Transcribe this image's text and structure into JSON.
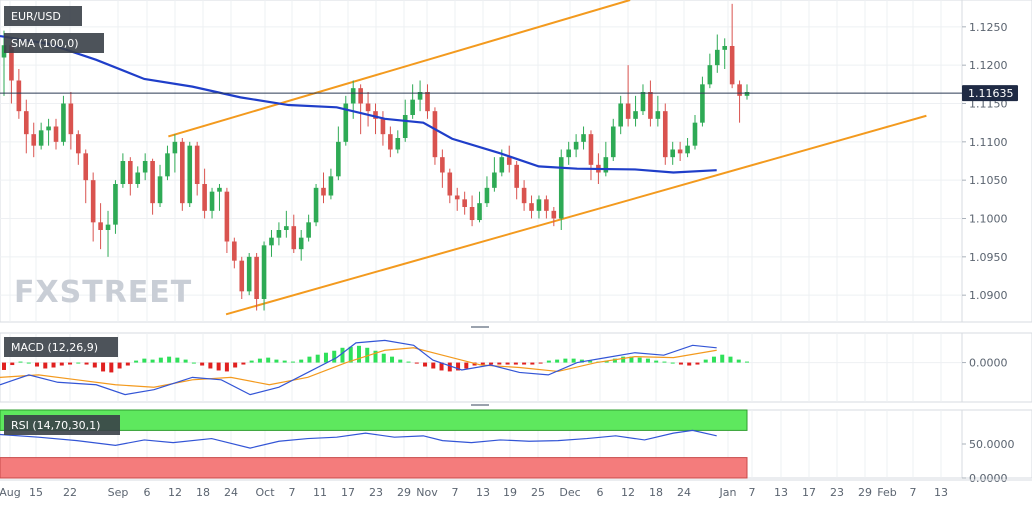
{
  "chart_data": [
    {
      "type": "candlestick",
      "symbol": "EUR/USD",
      "watermark": "FXSTREET",
      "indicator": "SMA (100,0)",
      "last_price": "1.11635",
      "ylim": [
        1.0865,
        1.1285
      ],
      "y_ticks": [
        "1.1250",
        "1.1200",
        "1.1150",
        "1.1100",
        "1.1050",
        "1.1000",
        "1.0950",
        "1.0900"
      ],
      "y_tick_values": [
        1.125,
        1.12,
        1.115,
        1.11,
        1.105,
        1.1,
        1.095,
        1.09
      ],
      "x_ticks": [
        "Aug",
        "15",
        "22",
        "Sep",
        "6",
        "12",
        "18",
        "24",
        "Oct",
        "7",
        "11",
        "17",
        "23",
        "29",
        "Nov",
        "7",
        "13",
        "19",
        "25",
        "Dec",
        "6",
        "12",
        "18",
        "24",
        "Jan",
        "7",
        "13",
        "17",
        "23",
        "29",
        "Feb",
        "7",
        "13"
      ],
      "colors": {
        "up": "#2eaa55",
        "down": "#d9534f",
        "sma": "#1f3ec9",
        "channel": "#f39a1e",
        "price_line": "#2b3a55",
        "tag_bg": "#3a4048",
        "last_bg": "#1f2a44"
      },
      "channel_upper": [
        [
          0.175,
          1.1107
        ],
        [
          0.655,
          1.1285
        ]
      ],
      "channel_lower": [
        [
          0.235,
          1.0875
        ],
        [
          0.963,
          1.1134
        ]
      ],
      "sma_points": [
        [
          0.0,
          1.1238
        ],
        [
          0.05,
          1.1228
        ],
        [
          0.1,
          1.1207
        ],
        [
          0.15,
          1.1182
        ],
        [
          0.2,
          1.1172
        ],
        [
          0.25,
          1.1158
        ],
        [
          0.3,
          1.1148
        ],
        [
          0.35,
          1.1145
        ],
        [
          0.4,
          1.113
        ],
        [
          0.44,
          1.1125
        ],
        [
          0.47,
          1.1104
        ],
        [
          0.52,
          1.1085
        ],
        [
          0.56,
          1.1068
        ],
        [
          0.6,
          1.1065
        ],
        [
          0.66,
          1.1064
        ],
        [
          0.7,
          1.106
        ],
        [
          0.745,
          1.1063
        ]
      ],
      "candles": [
        [
          1.121,
          1.1226,
          1.1245,
          1.116
        ],
        [
          1.1226,
          1.118,
          1.1235,
          1.115
        ],
        [
          1.118,
          1.114,
          1.1195,
          1.113
        ],
        [
          1.114,
          1.111,
          1.1155,
          1.1085
        ],
        [
          1.111,
          1.1095,
          1.1125,
          1.108
        ],
        [
          1.1095,
          1.1115,
          1.1125,
          1.109
        ],
        [
          1.1115,
          1.112,
          1.113,
          1.1095
        ],
        [
          1.112,
          1.11,
          1.113,
          1.109
        ],
        [
          1.11,
          1.115,
          1.116,
          1.1095
        ],
        [
          1.115,
          1.111,
          1.1165,
          1.109
        ],
        [
          1.111,
          1.1085,
          1.1115,
          1.107
        ],
        [
          1.1085,
          1.105,
          1.109,
          1.102
        ],
        [
          1.105,
          1.0995,
          1.106,
          1.097
        ],
        [
          1.0995,
          1.0985,
          1.102,
          1.096
        ],
        [
          1.0985,
          1.0992,
          1.101,
          1.095
        ],
        [
          1.0992,
          1.1045,
          1.105,
          1.098
        ],
        [
          1.1045,
          1.1075,
          1.1085,
          1.104
        ],
        [
          1.1075,
          1.1045,
          1.108,
          1.103
        ],
        [
          1.1045,
          1.106,
          1.1068,
          1.104
        ],
        [
          1.106,
          1.1075,
          1.1085,
          1.105
        ],
        [
          1.1075,
          1.102,
          1.1078,
          1.1005
        ],
        [
          1.102,
          1.1055,
          1.107,
          1.1015
        ],
        [
          1.1055,
          1.1085,
          1.1095,
          1.105
        ],
        [
          1.1085,
          1.11,
          1.111,
          1.106
        ],
        [
          1.11,
          1.102,
          1.1105,
          1.101
        ],
        [
          1.102,
          1.1095,
          1.11,
          1.1015
        ],
        [
          1.1095,
          1.1045,
          1.11,
          1.103
        ],
        [
          1.1045,
          1.101,
          1.1065,
          1.1
        ],
        [
          1.101,
          1.1035,
          1.104,
          1.1
        ],
        [
          1.1035,
          1.104,
          1.1045,
          1.101
        ],
        [
          1.1035,
          1.097,
          1.104,
          1.0955
        ],
        [
          1.097,
          1.0945,
          1.0975,
          1.0935
        ],
        [
          1.0945,
          1.0905,
          1.095,
          1.0895
        ],
        [
          1.0905,
          1.095,
          1.0955,
          1.09
        ],
        [
          1.095,
          1.0895,
          1.0955,
          1.088
        ],
        [
          1.0895,
          1.0965,
          1.097,
          1.088
        ],
        [
          1.0965,
          1.0975,
          1.0985,
          1.095
        ],
        [
          1.0975,
          1.0985,
          1.0995,
          1.0965
        ],
        [
          1.0985,
          1.099,
          1.101,
          1.0975
        ],
        [
          1.099,
          1.096,
          1.1005,
          1.0955
        ],
        [
          1.096,
          1.0975,
          1.0985,
          1.0945
        ],
        [
          1.0975,
          1.0995,
          1.1005,
          1.097
        ],
        [
          1.0995,
          1.104,
          1.1045,
          1.099
        ],
        [
          1.104,
          1.103,
          1.106,
          1.102
        ],
        [
          1.103,
          1.1055,
          1.1065,
          1.1025
        ],
        [
          1.1055,
          1.11,
          1.112,
          1.105
        ],
        [
          1.11,
          1.115,
          1.116,
          1.1095
        ],
        [
          1.115,
          1.117,
          1.118,
          1.113
        ],
        [
          1.117,
          1.115,
          1.1175,
          1.111
        ],
        [
          1.115,
          1.114,
          1.1165,
          1.112
        ],
        [
          1.114,
          1.113,
          1.115,
          1.111
        ],
        [
          1.113,
          1.111,
          1.114,
          1.1095
        ],
        [
          1.111,
          1.109,
          1.112,
          1.108
        ],
        [
          1.109,
          1.1105,
          1.1115,
          1.1085
        ],
        [
          1.1105,
          1.1135,
          1.1155,
          1.11
        ],
        [
          1.1135,
          1.1155,
          1.1175,
          1.113
        ],
        [
          1.1155,
          1.1165,
          1.118,
          1.114
        ],
        [
          1.1165,
          1.114,
          1.1175,
          1.113
        ],
        [
          1.114,
          1.108,
          1.1145,
          1.107
        ],
        [
          1.108,
          1.106,
          1.109,
          1.104
        ],
        [
          1.106,
          1.103,
          1.1065,
          1.102
        ],
        [
          1.103,
          1.1025,
          1.104,
          1.101
        ],
        [
          1.1025,
          1.1015,
          1.1035,
          1.1005
        ],
        [
          1.1015,
          1.0998,
          1.103,
          1.099
        ],
        [
          1.0998,
          1.102,
          1.1035,
          1.0995
        ],
        [
          1.102,
          1.104,
          1.1055,
          1.1015
        ],
        [
          1.104,
          1.106,
          1.108,
          1.1035
        ],
        [
          1.106,
          1.108,
          1.109,
          1.1055
        ],
        [
          1.108,
          1.107,
          1.1095,
          1.106
        ],
        [
          1.107,
          1.104,
          1.1075,
          1.1025
        ],
        [
          1.104,
          1.102,
          1.105,
          1.101
        ],
        [
          1.102,
          1.101,
          1.103,
          1.1
        ],
        [
          1.101,
          1.1025,
          1.103,
          1.1
        ],
        [
          1.1025,
          1.101,
          1.103,
          1.1
        ],
        [
          1.101,
          1.1,
          1.1015,
          1.099
        ],
        [
          1.1,
          1.108,
          1.109,
          1.0985
        ],
        [
          1.108,
          1.109,
          1.11,
          1.107
        ],
        [
          1.109,
          1.11,
          1.111,
          1.108
        ],
        [
          1.11,
          1.111,
          1.112,
          1.109
        ],
        [
          1.111,
          1.107,
          1.1115,
          1.105
        ],
        [
          1.107,
          1.106,
          1.1085,
          1.1045
        ],
        [
          1.106,
          1.108,
          1.11,
          1.1055
        ],
        [
          1.108,
          1.112,
          1.113,
          1.1075
        ],
        [
          1.112,
          1.115,
          1.116,
          1.111
        ],
        [
          1.115,
          1.113,
          1.12,
          1.112
        ],
        [
          1.113,
          1.114,
          1.116,
          1.112
        ],
        [
          1.114,
          1.1165,
          1.1175,
          1.1135
        ],
        [
          1.1165,
          1.113,
          1.118,
          1.112
        ],
        [
          1.113,
          1.114,
          1.116,
          1.112
        ],
        [
          1.114,
          1.108,
          1.115,
          1.107
        ],
        [
          1.108,
          1.109,
          1.11,
          1.107
        ],
        [
          1.109,
          1.1085,
          1.11,
          1.1075
        ],
        [
          1.1085,
          1.1095,
          1.1105,
          1.108
        ],
        [
          1.1095,
          1.1125,
          1.1135,
          1.109
        ],
        [
          1.1125,
          1.1175,
          1.1185,
          1.112
        ],
        [
          1.1175,
          1.12,
          1.1215,
          1.117
        ],
        [
          1.12,
          1.122,
          1.124,
          1.119
        ],
        [
          1.122,
          1.1225,
          1.1235,
          1.1195
        ],
        [
          1.1225,
          1.1175,
          1.128,
          1.117
        ],
        [
          1.1175,
          1.116,
          1.118,
          1.1125
        ],
        [
          1.116,
          1.1165,
          1.1175,
          1.1155
        ]
      ]
    },
    {
      "type": "macd",
      "indicator": "MACD (12,26,9)",
      "ylim": [
        -0.008,
        0.006
      ],
      "y_ticks": [
        "0.0000"
      ],
      "y_tick_values": [
        0.0
      ],
      "colors": {
        "hist_up": "#2fe05a",
        "hist_down": "#e02020",
        "macd": "#3355d6",
        "signal": "#f39a1e"
      },
      "macd_points": [
        [
          0.0,
          -0.0045
        ],
        [
          0.03,
          -0.0025
        ],
        [
          0.06,
          -0.004
        ],
        [
          0.1,
          -0.0045
        ],
        [
          0.13,
          -0.0065
        ],
        [
          0.16,
          -0.0055
        ],
        [
          0.2,
          -0.003
        ],
        [
          0.23,
          -0.0035
        ],
        [
          0.26,
          -0.0065
        ],
        [
          0.29,
          -0.005
        ],
        [
          0.32,
          -0.002
        ],
        [
          0.35,
          0.001
        ],
        [
          0.37,
          0.004
        ],
        [
          0.4,
          0.0045
        ],
        [
          0.43,
          0.0035
        ],
        [
          0.45,
          0.0005
        ],
        [
          0.48,
          -0.0015
        ],
        [
          0.51,
          -0.0005
        ],
        [
          0.54,
          -0.002
        ],
        [
          0.57,
          -0.0025
        ],
        [
          0.6,
          0.0
        ],
        [
          0.63,
          0.001
        ],
        [
          0.66,
          0.002
        ],
        [
          0.69,
          0.0015
        ],
        [
          0.72,
          0.0035
        ],
        [
          0.745,
          0.003
        ]
      ],
      "signal_points": [
        [
          0.0,
          -0.003
        ],
        [
          0.04,
          -0.0025
        ],
        [
          0.08,
          -0.0035
        ],
        [
          0.12,
          -0.0045
        ],
        [
          0.16,
          -0.005
        ],
        [
          0.2,
          -0.0035
        ],
        [
          0.24,
          -0.003
        ],
        [
          0.28,
          -0.0045
        ],
        [
          0.32,
          -0.003
        ],
        [
          0.36,
          0.0
        ],
        [
          0.4,
          0.0025
        ],
        [
          0.43,
          0.003
        ],
        [
          0.46,
          0.0015
        ],
        [
          0.5,
          -0.0005
        ],
        [
          0.54,
          -0.001
        ],
        [
          0.58,
          -0.0018
        ],
        [
          0.62,
          0.0
        ],
        [
          0.66,
          0.0012
        ],
        [
          0.7,
          0.001
        ],
        [
          0.745,
          0.0025
        ]
      ],
      "histogram": [
        -0.0015,
        -0.0005,
        0.0002,
        0.0,
        -0.0008,
        -0.0012,
        -0.001,
        -0.0006,
        -0.0004,
        0.0,
        -0.0004,
        -0.001,
        -0.0018,
        -0.002,
        -0.0012,
        -0.0006,
        0.0004,
        0.0008,
        0.0006,
        0.001,
        0.0012,
        0.001,
        0.0006,
        0.0,
        -0.0006,
        -0.0012,
        -0.0016,
        -0.0018,
        -0.001,
        -0.0004,
        0.0004,
        0.0008,
        0.001,
        0.0006,
        0.0004,
        0.0002,
        0.0006,
        0.0012,
        0.0016,
        0.002,
        0.0024,
        0.003,
        0.0032,
        0.0034,
        0.003,
        0.0024,
        0.0018,
        0.0012,
        0.0006,
        0.0002,
        -0.0002,
        -0.0008,
        -0.0012,
        -0.0016,
        -0.0018,
        -0.0016,
        -0.0012,
        -0.0006,
        -0.0004,
        -0.0004,
        -0.0004,
        -0.0004,
        -0.0004,
        -0.0004,
        -0.0004,
        -0.0002,
        0.0004,
        0.0006,
        0.0008,
        0.0008,
        0.0006,
        0.0004,
        0.0002,
        0.0004,
        0.0008,
        0.0012,
        0.0012,
        0.001,
        0.0008,
        0.0004,
        0.0002,
        0.0,
        -0.0004,
        -0.0006,
        -0.0004,
        0.0006,
        0.0012,
        0.0016,
        0.0012,
        0.0006,
        0.0002
      ]
    },
    {
      "type": "rsi",
      "indicator": "RSI (14,70,30,1)",
      "ylim": [
        0,
        100
      ],
      "y_ticks": [
        "50.0000",
        "0.0000"
      ],
      "y_tick_values": [
        50,
        0
      ],
      "overbought": 70,
      "oversold": 30,
      "colors": {
        "overbought_band": "#5ee85e",
        "oversold_band": "#f47c7c",
        "line": "#3355d6"
      },
      "rsi_points": [
        [
          0.0,
          64
        ],
        [
          0.04,
          60
        ],
        [
          0.08,
          55
        ],
        [
          0.12,
          48
        ],
        [
          0.15,
          56
        ],
        [
          0.18,
          52
        ],
        [
          0.22,
          58
        ],
        [
          0.26,
          44
        ],
        [
          0.29,
          54
        ],
        [
          0.32,
          58
        ],
        [
          0.35,
          60
        ],
        [
          0.38,
          66
        ],
        [
          0.41,
          60
        ],
        [
          0.44,
          62
        ],
        [
          0.46,
          55
        ],
        [
          0.49,
          52
        ],
        [
          0.52,
          56
        ],
        [
          0.55,
          54
        ],
        [
          0.58,
          55
        ],
        [
          0.61,
          58
        ],
        [
          0.64,
          62
        ],
        [
          0.67,
          56
        ],
        [
          0.7,
          66
        ],
        [
          0.72,
          70
        ],
        [
          0.745,
          62
        ]
      ]
    }
  ]
}
